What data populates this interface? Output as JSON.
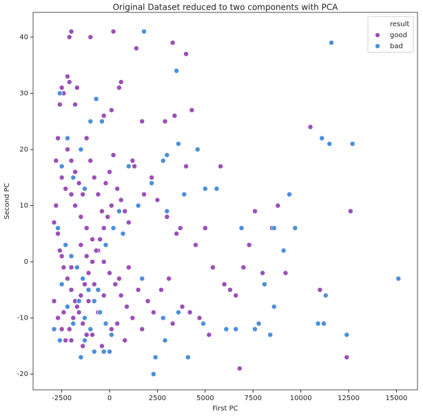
{
  "chart_data": {
    "type": "scatter",
    "title": "Original Dataset reduced to two components with PCA",
    "x_label": "First PC",
    "y_label": "Second PC",
    "legend_title": "result",
    "legend": "upper right",
    "xlim": [
      -4000,
      16100
    ],
    "ylim": [
      -22.8,
      44.4
    ],
    "xticks": [
      -2500,
      0,
      2500,
      5000,
      7500,
      10000,
      12500,
      15000
    ],
    "yticks": [
      -20,
      -10,
      0,
      10,
      20,
      30,
      40
    ],
    "series": [
      {
        "name": "good",
        "color": "#9b4fb8",
        "x": [
          -2900,
          -2800,
          -2700,
          -2600,
          -2500,
          -2400,
          -2200,
          -2100,
          -1800,
          -1700,
          -1000,
          -2000,
          -2100,
          200,
          1400,
          500,
          600,
          -300,
          100,
          1700,
          3300,
          4000,
          3400,
          4300,
          2900,
          -2800,
          -2500,
          -2300,
          -2000,
          -1800,
          -1500,
          -1200,
          -900,
          -600,
          -300,
          0,
          300,
          600,
          900,
          1200,
          -2700,
          -2600,
          -2400,
          -2200,
          -2000,
          -1800,
          -1600,
          -1400,
          -1200,
          -2900,
          -2700,
          -2500,
          -2300,
          -2100,
          -1900,
          -1700,
          -1500,
          -1300,
          -1100,
          -900,
          -700,
          -500,
          -300,
          -100,
          100,
          -2200,
          -2000,
          -1800,
          -1600,
          -1400,
          -1200,
          -1000,
          -800,
          -600,
          -400,
          -200,
          0,
          200,
          400,
          600,
          800,
          1000,
          1200,
          1300,
          1800,
          2200,
          2500,
          3000,
          3500,
          3700,
          4000,
          4500,
          5000,
          5400,
          5800,
          6000,
          6300,
          6600,
          6800,
          7000,
          7300,
          7600,
          8000,
          8500,
          8800,
          9200,
          10500,
          11000,
          12400,
          12600,
          2000,
          2300,
          2700,
          3100,
          3300,
          3800,
          4200,
          4700,
          5200,
          1500,
          1700,
          800,
          400,
          -400,
          -900,
          -1400,
          -2000,
          -2400,
          -1100,
          -600,
          100,
          500,
          1000,
          -1500,
          -2500,
          -2000,
          -1200,
          -800,
          -300
        ],
        "values": [
          7,
          10,
          22,
          28,
          31,
          30,
          33,
          32,
          28,
          31,
          40,
          41,
          40,
          41,
          38,
          31,
          32,
          26,
          27,
          25,
          39,
          37,
          26,
          27,
          25,
          18,
          15,
          13,
          12,
          10,
          8,
          6,
          4,
          2,
          0,
          -2,
          -4,
          -6,
          -8,
          -10,
          5,
          2,
          -1,
          -3,
          -5,
          -7,
          -9,
          -11,
          -13,
          -7,
          -10,
          -12,
          -14,
          -12,
          -10,
          -8,
          -6,
          -4,
          -2,
          0,
          2,
          4,
          6,
          8,
          10,
          20,
          18,
          16,
          14,
          12,
          22,
          18,
          15,
          12,
          9,
          14,
          16,
          19,
          13,
          11,
          9,
          7,
          18,
          17,
          12,
          15,
          11,
          8,
          5,
          6,
          17,
          3,
          6,
          -1,
          17,
          -4,
          -5,
          -6,
          -19,
          -1,
          3,
          9,
          -2,
          6,
          10,
          -2,
          24,
          -5,
          -17,
          9,
          -7,
          -9,
          -5,
          -3,
          -11,
          -8,
          -9,
          -10,
          -13,
          -5,
          -12,
          -14,
          -11,
          -15,
          -13,
          -15,
          -14,
          -9,
          -7,
          -9,
          -12,
          -3,
          -1,
          3,
          1,
          -1,
          1,
          -4,
          -6
        ]
      },
      {
        "name": "bad",
        "color": "#4c8fdb",
        "x": [
          -2600,
          -2200,
          -2500,
          -1900,
          -1300,
          -700,
          -1000,
          -400,
          -1500,
          -2700,
          -2300,
          -2000,
          -1700,
          -1400,
          -1100,
          -800,
          -500,
          -200,
          100,
          -2900,
          -2600,
          -1500,
          -1300,
          -800,
          -300,
          0,
          -2500,
          -2200,
          -1900,
          -1600,
          -1300,
          -1000,
          -600,
          -200,
          200,
          500,
          700,
          1500,
          1700,
          1800,
          3500,
          3600,
          3000,
          2800,
          4600,
          3900,
          2400,
          2300,
          2900,
          3600,
          4100,
          4900,
          5000,
          5600,
          6100,
          6600,
          6900,
          7600,
          7800,
          8100,
          8400,
          8600,
          8600,
          9100,
          9400,
          9700,
          10900,
          11200,
          11300,
          11100,
          11500,
          11600,
          12400,
          12700,
          15100,
          3000,
          2800,
          2200,
          1000
        ],
        "values": [
          30,
          22,
          17,
          15,
          13,
          29,
          25,
          25,
          20,
          6,
          3,
          1,
          -1,
          -3,
          -5,
          -7,
          -9,
          -11,
          -13,
          -12,
          -14,
          -17,
          -14,
          -16,
          -16,
          -16,
          -4,
          -8,
          -11,
          -7,
          -10,
          -12,
          -5,
          3,
          6,
          9,
          5,
          10,
          -3,
          41,
          34,
          21,
          19,
          18,
          20,
          12,
          -17,
          -20,
          -14,
          -9,
          -17,
          -11,
          13,
          13,
          -12,
          -12,
          6,
          -12,
          -11,
          -4,
          -13,
          6,
          -8,
          2,
          12,
          6,
          -11,
          -11,
          -6,
          22,
          21,
          39,
          -13,
          21,
          -3,
          9,
          -10,
          14,
          17
        ]
      }
    ]
  }
}
